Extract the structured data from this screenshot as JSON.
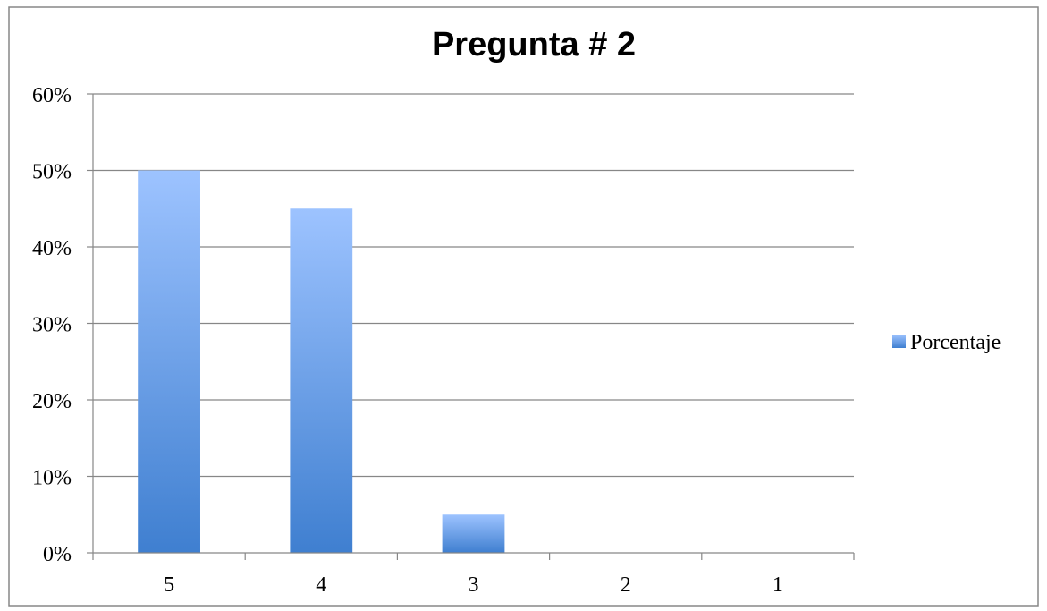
{
  "chart_data": {
    "type": "bar",
    "title": "Pregunta # 2",
    "xlabel": "",
    "ylabel": "",
    "categories": [
      "5",
      "4",
      "3",
      "2",
      "1"
    ],
    "series": [
      {
        "name": "Porcentaje",
        "values": [
          50,
          45,
          5,
          0,
          0
        ]
      }
    ],
    "ylim": [
      0,
      60
    ],
    "yticks": [
      "0%",
      "10%",
      "20%",
      "30%",
      "40%",
      "50%",
      "60%"
    ],
    "grid": true,
    "legend_position": "right",
    "colors": {
      "bar_top": "#9DC3FF",
      "bar_bottom": "#3F7FD0",
      "grid": "#878787",
      "border": "#878787"
    }
  }
}
